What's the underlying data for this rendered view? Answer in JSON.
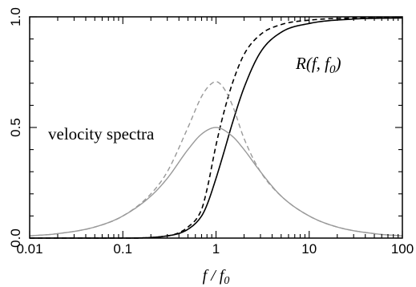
{
  "chart_data": {
    "type": "line",
    "x_scale": "log",
    "xlim": [
      0.01,
      100
    ],
    "ylim": [
      0,
      1
    ],
    "x_tick_labels": [
      "0.01",
      "0.1",
      "1",
      "10",
      "100"
    ],
    "y_tick_labels": [
      "0.0",
      "0.5",
      "1.0"
    ],
    "xlabel": "f / f0",
    "annotations": [
      {
        "text": "velocity spectra",
        "x": 0.12,
        "y": 0.46
      },
      {
        "text": "R(f, f0)",
        "x": 3.6,
        "y": 0.77
      }
    ],
    "grid": false,
    "series": [
      {
        "style": "solid",
        "color": "#000000",
        "x": [
          0.01,
          0.1,
          0.3,
          0.5,
          0.7,
          0.8,
          1.0,
          1.2,
          1.5,
          2.0,
          3.0,
          5.0,
          10,
          30,
          100
        ],
        "y": [
          0.0,
          0.0,
          0.01,
          0.04,
          0.1,
          0.15,
          0.27,
          0.38,
          0.52,
          0.68,
          0.84,
          0.93,
          0.97,
          0.99,
          0.995
        ]
      },
      {
        "style": "dashed",
        "color": "#000000",
        "x": [
          0.01,
          0.1,
          0.3,
          0.5,
          0.7,
          0.8,
          1.0,
          1.2,
          1.5,
          2.0,
          3.0,
          5.0,
          10,
          30,
          100
        ],
        "y": [
          0.0,
          0.0,
          0.01,
          0.05,
          0.13,
          0.22,
          0.42,
          0.56,
          0.7,
          0.83,
          0.92,
          0.965,
          0.985,
          0.995,
          0.998
        ]
      },
      {
        "style": "solid",
        "color": "#999999",
        "x": [
          0.01,
          0.02,
          0.05,
          0.1,
          0.2,
          0.3,
          0.5,
          0.7,
          1.0,
          1.5,
          2.0,
          3.0,
          5.0,
          10,
          20,
          50,
          100
        ],
        "y": [
          0.01,
          0.02,
          0.05,
          0.1,
          0.19,
          0.27,
          0.4,
          0.47,
          0.5,
          0.46,
          0.4,
          0.3,
          0.19,
          0.1,
          0.05,
          0.02,
          0.01
        ]
      },
      {
        "style": "dashed",
        "color": "#999999",
        "x": [
          0.01,
          0.02,
          0.05,
          0.1,
          0.2,
          0.3,
          0.5,
          0.7,
          0.85,
          1.0,
          1.2,
          1.5,
          2.0,
          3.0,
          5.0,
          10,
          20,
          50,
          100
        ],
        "y": [
          0.01,
          0.02,
          0.05,
          0.1,
          0.2,
          0.3,
          0.5,
          0.64,
          0.69,
          0.707,
          0.68,
          0.6,
          0.45,
          0.3,
          0.19,
          0.1,
          0.05,
          0.02,
          0.01
        ]
      }
    ]
  }
}
